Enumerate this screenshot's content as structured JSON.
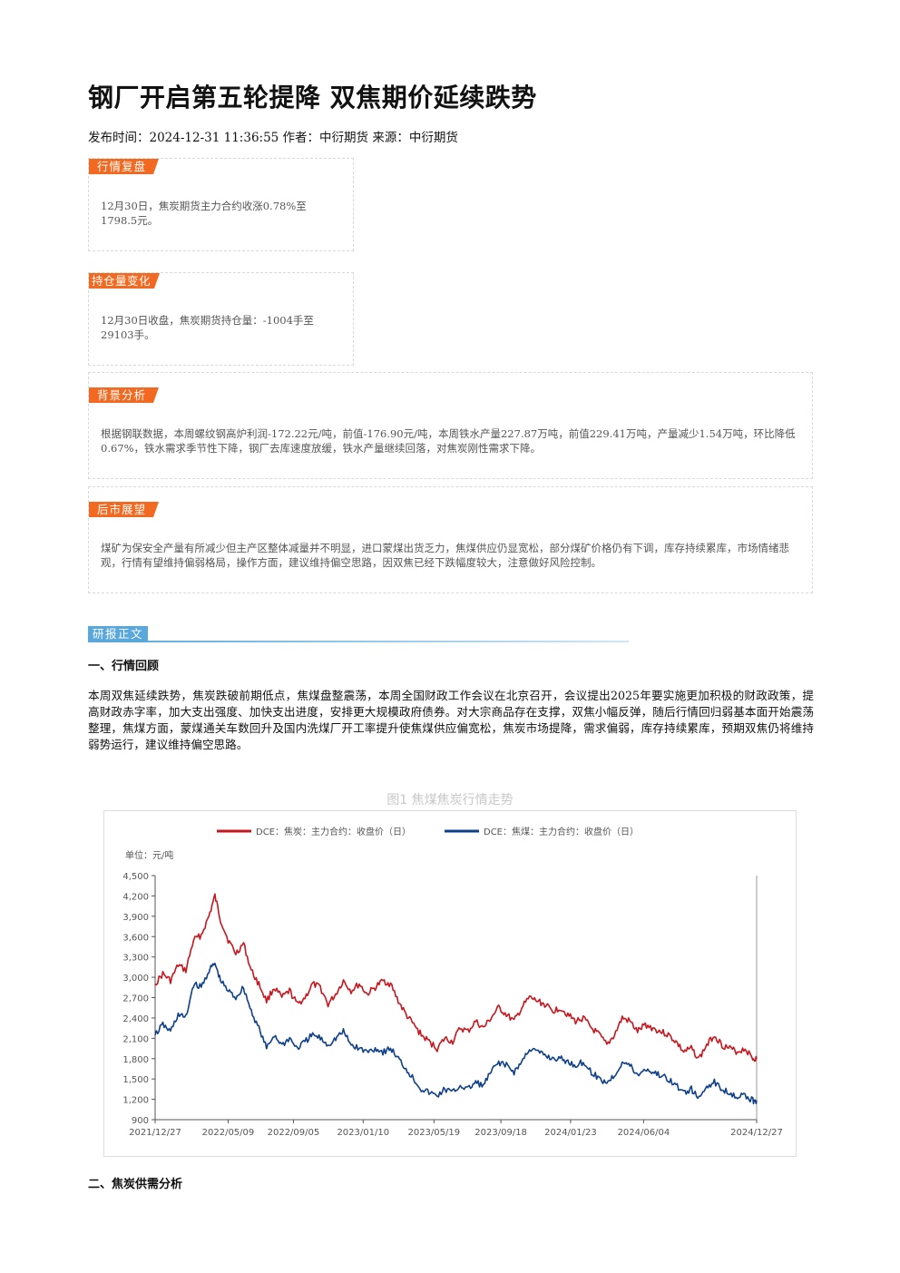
{
  "article": {
    "title": "钢厂开启第五轮提降 双焦期价延续跌势",
    "meta": "发布时间：2024-12-31 11:36:55 作者：中衍期货 来源：中衍期货"
  },
  "boxes": {
    "review": {
      "tag": "行情复盘",
      "text": "12月30日，焦炭期货主力合约收涨0.78%至1798.5元。"
    },
    "position": {
      "tag": "持仓量变化",
      "text": "12月30日收盘，焦炭期货持仓量：-1004手至29103手。"
    },
    "background": {
      "tag": "背景分析",
      "text": "根据钢联数据，本周螺纹钢高炉利润-172.22元/吨，前值-176.90元/吨，本周铁水产量227.87万吨，前值229.41万吨，产量减少1.54万吨，环比降低0.67%，铁水需求季节性下降，钢厂去库速度放缓，铁水产量继续回落，对焦炭刚性需求下降。"
    },
    "outlook": {
      "tag": "后市展望",
      "text": "煤矿为保安全产量有所减少但主产区整体减量并不明显，进口蒙煤出货乏力，焦煤供应仍显宽松，部分煤矿价格仍有下调，库存持续累库，市场情绪悲观，行情有望维持偏弱格局，操作方面，建议维持偏空思路，因双焦已经下跌幅度较大，注意做好风险控制。"
    }
  },
  "report": {
    "section_tag": "研报正文",
    "heading1": "一、行情回顾",
    "paragraph1": "本周双焦延续跌势，焦炭跌破前期低点，焦煤盘整震荡，本周全国财政工作会议在北京召开，会议提出2025年要实施更加积极的财政政策，提高财政赤字率，加大支出强度、加快支出进度，安排更大规模政府债券。对大宗商品存在支撑，双焦小幅反弹，随后行情回归弱基本面开始震荡整理，焦煤方面，蒙煤通关车数回升及国内洗煤厂开工率提升使焦煤供应偏宽松，焦炭市场提降，需求偏弱，库存持续累库，预期双焦仍将维持弱势运行，建议维持偏空思路。",
    "figure_title": "图1 焦煤焦炭行情走势",
    "heading2": "二、焦炭供需分析"
  },
  "colors": {
    "coke": "#c8161e",
    "coking_coal": "#0d3f8a",
    "tag_orange": "#f26a21",
    "tag_blue": "#5aa8db"
  },
  "chart_data": {
    "type": "line",
    "unit_label": "单位：元/吨",
    "x_range": [
      "2021-12-27",
      "2024-12-27"
    ],
    "x_ticks": [
      "2021/12/27",
      "2022/05/09",
      "2022/09/05",
      "2023/01/10",
      "2023/05/19",
      "2023/09/18",
      "2024/01/23",
      "2024/06/04",
      "2024/12/27"
    ],
    "ylim": [
      900,
      4500
    ],
    "y_ticks": [
      900,
      1200,
      1500,
      1800,
      2100,
      2400,
      2700,
      3000,
      3300,
      3600,
      3900,
      4200,
      4500
    ],
    "y_tick_labels": [
      "900",
      "1,200",
      "1,500",
      "1,800",
      "2,100",
      "2,400",
      "2,700",
      "3,000",
      "3,300",
      "3,600",
      "3,900",
      "4,200",
      "4,500"
    ],
    "legend_position": "top",
    "grid": false,
    "series": [
      {
        "name": "DCE：焦炭：主力合约：收盘价（日）",
        "points": [
          [
            "2021-12-27",
            2900
          ],
          [
            "2022-01-10",
            3050
          ],
          [
            "2022-01-24",
            2950
          ],
          [
            "2022-02-07",
            3180
          ],
          [
            "2022-02-21",
            3100
          ],
          [
            "2022-03-07",
            3550
          ],
          [
            "2022-03-21",
            3620
          ],
          [
            "2022-04-04",
            3900
          ],
          [
            "2022-04-15",
            4200
          ],
          [
            "2022-04-25",
            3850
          ],
          [
            "2022-05-09",
            3550
          ],
          [
            "2022-05-23",
            3350
          ],
          [
            "2022-06-06",
            3500
          ],
          [
            "2022-06-20",
            3100
          ],
          [
            "2022-07-04",
            2900
          ],
          [
            "2022-07-18",
            2650
          ],
          [
            "2022-08-01",
            2850
          ],
          [
            "2022-08-15",
            2700
          ],
          [
            "2022-08-29",
            2800
          ],
          [
            "2022-09-12",
            2600
          ],
          [
            "2022-09-26",
            2700
          ],
          [
            "2022-10-10",
            2900
          ],
          [
            "2022-10-24",
            2850
          ],
          [
            "2022-11-07",
            2600
          ],
          [
            "2022-11-21",
            2750
          ],
          [
            "2022-12-05",
            2950
          ],
          [
            "2022-12-19",
            2800
          ],
          [
            "2023-01-03",
            2900
          ],
          [
            "2023-01-17",
            2750
          ],
          [
            "2023-02-01",
            2850
          ],
          [
            "2023-02-15",
            2950
          ],
          [
            "2023-03-01",
            2900
          ],
          [
            "2023-03-15",
            2650
          ],
          [
            "2023-03-29",
            2450
          ],
          [
            "2023-04-12",
            2300
          ],
          [
            "2023-04-26",
            2150
          ],
          [
            "2023-05-10",
            2050
          ],
          [
            "2023-05-25",
            1950
          ],
          [
            "2023-06-08",
            2100
          ],
          [
            "2023-06-22",
            2050
          ],
          [
            "2023-07-06",
            2250
          ],
          [
            "2023-07-20",
            2200
          ],
          [
            "2023-08-03",
            2350
          ],
          [
            "2023-08-17",
            2250
          ],
          [
            "2023-08-31",
            2400
          ],
          [
            "2023-09-14",
            2550
          ],
          [
            "2023-09-28",
            2450
          ],
          [
            "2023-10-12",
            2350
          ],
          [
            "2023-10-26",
            2550
          ],
          [
            "2023-11-09",
            2700
          ],
          [
            "2023-11-23",
            2650
          ],
          [
            "2023-12-07",
            2600
          ],
          [
            "2023-12-21",
            2500
          ],
          [
            "2024-01-04",
            2550
          ],
          [
            "2024-01-18",
            2450
          ],
          [
            "2024-02-01",
            2350
          ],
          [
            "2024-02-15",
            2400
          ],
          [
            "2024-03-01",
            2250
          ],
          [
            "2024-03-15",
            2150
          ],
          [
            "2024-03-29",
            2000
          ],
          [
            "2024-04-12",
            2150
          ],
          [
            "2024-04-26",
            2400
          ],
          [
            "2024-05-10",
            2350
          ],
          [
            "2024-05-24",
            2200
          ],
          [
            "2024-06-07",
            2300
          ],
          [
            "2024-06-21",
            2250
          ],
          [
            "2024-07-05",
            2200
          ],
          [
            "2024-07-19",
            2150
          ],
          [
            "2024-08-02",
            2050
          ],
          [
            "2024-08-16",
            1900
          ],
          [
            "2024-08-30",
            1950
          ],
          [
            "2024-09-13",
            1800
          ],
          [
            "2024-09-27",
            2000
          ],
          [
            "2024-10-11",
            2150
          ],
          [
            "2024-10-25",
            2000
          ],
          [
            "2024-11-08",
            1950
          ],
          [
            "2024-11-22",
            1900
          ],
          [
            "2024-12-06",
            1950
          ],
          [
            "2024-12-20",
            1800
          ],
          [
            "2024-12-27",
            1800
          ]
        ]
      },
      {
        "name": "DCE：焦煤：主力合约：收盘价（日）",
        "points": [
          [
            "2021-12-27",
            2150
          ],
          [
            "2022-01-10",
            2300
          ],
          [
            "2022-01-24",
            2200
          ],
          [
            "2022-02-07",
            2450
          ],
          [
            "2022-02-21",
            2400
          ],
          [
            "2022-03-07",
            2900
          ],
          [
            "2022-03-21",
            2850
          ],
          [
            "2022-04-04",
            3100
          ],
          [
            "2022-04-15",
            3200
          ],
          [
            "2022-04-25",
            2950
          ],
          [
            "2022-05-09",
            2800
          ],
          [
            "2022-05-23",
            2700
          ],
          [
            "2022-06-06",
            2850
          ],
          [
            "2022-06-20",
            2500
          ],
          [
            "2022-07-04",
            2250
          ],
          [
            "2022-07-18",
            1950
          ],
          [
            "2022-08-01",
            2150
          ],
          [
            "2022-08-15",
            2000
          ],
          [
            "2022-08-29",
            2100
          ],
          [
            "2022-09-12",
            1950
          ],
          [
            "2022-09-26",
            2050
          ],
          [
            "2022-10-10",
            2150
          ],
          [
            "2022-10-24",
            2100
          ],
          [
            "2022-11-07",
            2000
          ],
          [
            "2022-11-21",
            2100
          ],
          [
            "2022-12-05",
            2200
          ],
          [
            "2022-12-19",
            2000
          ],
          [
            "2023-01-03",
            1950
          ],
          [
            "2023-01-17",
            1900
          ],
          [
            "2023-02-01",
            1950
          ],
          [
            "2023-02-15",
            1900
          ],
          [
            "2023-03-01",
            1950
          ],
          [
            "2023-03-15",
            1800
          ],
          [
            "2023-03-29",
            1650
          ],
          [
            "2023-04-12",
            1500
          ],
          [
            "2023-04-26",
            1350
          ],
          [
            "2023-05-10",
            1300
          ],
          [
            "2023-05-25",
            1250
          ],
          [
            "2023-06-08",
            1350
          ],
          [
            "2023-06-22",
            1300
          ],
          [
            "2023-07-06",
            1400
          ],
          [
            "2023-07-20",
            1350
          ],
          [
            "2023-08-03",
            1450
          ],
          [
            "2023-08-17",
            1400
          ],
          [
            "2023-08-31",
            1600
          ],
          [
            "2023-09-14",
            1750
          ],
          [
            "2023-09-28",
            1700
          ],
          [
            "2023-10-12",
            1600
          ],
          [
            "2023-10-26",
            1750
          ],
          [
            "2023-11-09",
            1950
          ],
          [
            "2023-11-23",
            1900
          ],
          [
            "2023-12-07",
            1850
          ],
          [
            "2023-12-21",
            1800
          ],
          [
            "2024-01-04",
            1800
          ],
          [
            "2024-01-18",
            1750
          ],
          [
            "2024-02-01",
            1700
          ],
          [
            "2024-02-15",
            1750
          ],
          [
            "2024-03-01",
            1600
          ],
          [
            "2024-03-15",
            1500
          ],
          [
            "2024-03-29",
            1450
          ],
          [
            "2024-04-12",
            1550
          ],
          [
            "2024-04-26",
            1750
          ],
          [
            "2024-05-10",
            1700
          ],
          [
            "2024-05-24",
            1550
          ],
          [
            "2024-06-07",
            1650
          ],
          [
            "2024-06-21",
            1600
          ],
          [
            "2024-07-05",
            1550
          ],
          [
            "2024-07-19",
            1500
          ],
          [
            "2024-08-02",
            1400
          ],
          [
            "2024-08-16",
            1300
          ],
          [
            "2024-08-30",
            1350
          ],
          [
            "2024-09-13",
            1200
          ],
          [
            "2024-09-27",
            1400
          ],
          [
            "2024-10-11",
            1450
          ],
          [
            "2024-10-25",
            1350
          ],
          [
            "2024-11-08",
            1300
          ],
          [
            "2024-11-22",
            1250
          ],
          [
            "2024-12-06",
            1250
          ],
          [
            "2024-12-20",
            1180
          ],
          [
            "2024-12-27",
            1180
          ]
        ]
      }
    ]
  }
}
